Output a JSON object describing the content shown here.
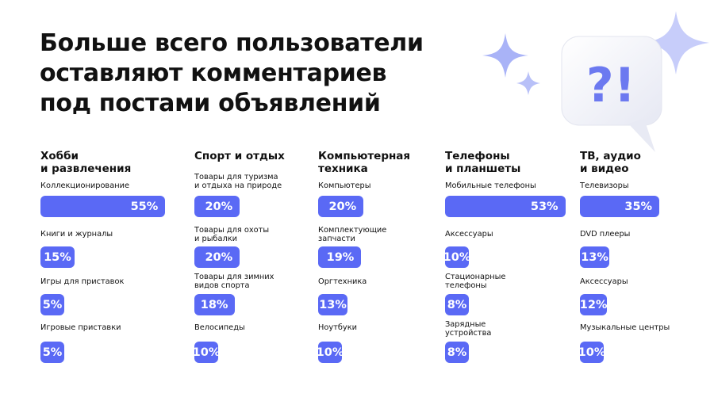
{
  "title": "Больше всего пользователи\nоставляют комментариев\nпод постами объявлений",
  "colors": {
    "bar": "#5A69F5",
    "bar_text": "#ffffff",
    "sparkle": "#A9B3F7",
    "bubble": "#F1F2F8"
  },
  "decoration": {
    "icon": "question-exclamation-bubble-icon",
    "text": "?!"
  },
  "chart_data": {
    "type": "bar",
    "unit": "%",
    "categories": [
      {
        "name": "Хобби\nи развлечения",
        "items": [
          {
            "label": "Коллекционирование",
            "value": 55
          },
          {
            "label": "Книги и журналы",
            "value": 15
          },
          {
            "label": "Игры для приставок",
            "value": 5
          },
          {
            "label": "Игровые приставки",
            "value": 5
          }
        ]
      },
      {
        "name": "Спорт и отдых",
        "items": [
          {
            "label": "Товары для туризма\nи отдыха на природе",
            "value": 20
          },
          {
            "label": "Товары для охоты\nи рыбалки",
            "value": 20
          },
          {
            "label": "Товары для зимних\nвидов спорта",
            "value": 18
          },
          {
            "label": "Велосипеды",
            "value": 10
          }
        ]
      },
      {
        "name": "Компьютерная\nтехника",
        "items": [
          {
            "label": "Компьютеры",
            "value": 20
          },
          {
            "label": "Комплектующие\nзапчасти",
            "value": 19
          },
          {
            "label": "Оргтехника",
            "value": 13
          },
          {
            "label": "Ноутбуки",
            "value": 10
          }
        ]
      },
      {
        "name": "Телефоны\nи планшеты",
        "items": [
          {
            "label": "Мобильные телефоны",
            "value": 53
          },
          {
            "label": "Аксессуары",
            "value": 10
          },
          {
            "label": "Стационарные\nтелефоны",
            "value": 8
          },
          {
            "label": "Зарядные\nустройства",
            "value": 8
          }
        ]
      },
      {
        "name": "ТВ, аудио\nи видео",
        "items": [
          {
            "label": "Телевизоры",
            "value": 35
          },
          {
            "label": "DVD плееры",
            "value": 13
          },
          {
            "label": "Аксессуары",
            "value": 12
          },
          {
            "label": "Музыкальные центры",
            "value": 10
          }
        ]
      }
    ]
  }
}
